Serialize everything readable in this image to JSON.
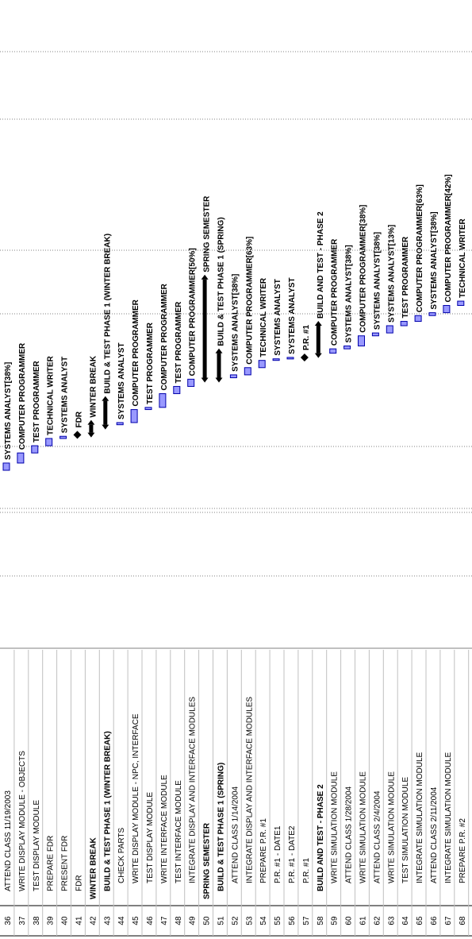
{
  "rows": [
    {
      "id": "36",
      "task": "ATTEND CLASS 11/19/2003",
      "level": 1,
      "summary": false,
      "bar_label": "SYSTEMS ANALYST[38%]",
      "bar": {
        "type": "task",
        "start": 0.0,
        "end": 0.5
      }
    },
    {
      "id": "37",
      "task": "WRITE DISPLAY MODULE - OBJECTS",
      "level": 1,
      "summary": false,
      "bar_label": "COMPUTER PROGRAMMER",
      "bar": {
        "type": "task",
        "start": 0.5,
        "end": 1.2
      }
    },
    {
      "id": "38",
      "task": "TEST DISPLAY MODULE",
      "level": 1,
      "summary": false,
      "bar_label": "TEST PROGRAMMER",
      "bar": {
        "type": "task",
        "start": 1.2,
        "end": 1.7
      }
    },
    {
      "id": "39",
      "task": "PREPARE FDR",
      "level": 1,
      "summary": false,
      "bar_label": "TECHNICAL WRITER",
      "bar": {
        "type": "task",
        "start": 1.7,
        "end": 2.2
      }
    },
    {
      "id": "40",
      "task": "PRESENT FDR",
      "level": 1,
      "summary": false,
      "bar_label": "SYSTEMS ANALYST",
      "bar": {
        "type": "task",
        "start": 2.2,
        "end": 2.35
      }
    },
    {
      "id": "41",
      "task": "FDR",
      "level": 1,
      "summary": false,
      "bar_label": "FDR",
      "bar": {
        "type": "milestone",
        "start": 2.45
      }
    },
    {
      "id": "42",
      "task": "WINTER BREAK",
      "level": 0,
      "summary": true,
      "bar_label": "WINTER BREAK",
      "bar": {
        "type": "summary",
        "start": 2.6,
        "end": 3.15
      }
    },
    {
      "id": "43",
      "task": "BUILD & TEST PHASE 1 (WINTER BREAK)",
      "level": 1,
      "summary": true,
      "bar_label": "BUILD & TEST PHASE 1 (WINTER BREAK)",
      "bar": {
        "type": "summary",
        "start": 3.15,
        "end": 4.8
      }
    },
    {
      "id": "44",
      "task": "CHECK PARTS",
      "level": 2,
      "summary": false,
      "bar_label": "SYSTEMS ANALYST",
      "bar": {
        "type": "task",
        "start": 3.15,
        "end": 3.3
      }
    },
    {
      "id": "45",
      "task": "WRITE DISPLAY MODULE - NPC, INTERFACE",
      "level": 2,
      "summary": false,
      "bar_label": "COMPUTER PROGRAMMER",
      "bar": {
        "type": "task",
        "start": 3.3,
        "end": 4.2
      }
    },
    {
      "id": "46",
      "task": "TEST DISPLAY MODULE",
      "level": 2,
      "summary": false,
      "bar_label": "TEST PROGRAMMER",
      "bar": {
        "type": "task",
        "start": 4.2,
        "end": 4.35
      }
    },
    {
      "id": "47",
      "task": "WRITE INTERFACE MODULE",
      "level": 2,
      "summary": false,
      "bar_label": "COMPUTER PROGRAMMER",
      "bar": {
        "type": "task",
        "start": 4.35,
        "end": 5.3
      }
    },
    {
      "id": "48",
      "task": "TEST INTERFACE MODULE",
      "level": 2,
      "summary": false,
      "bar_label": "TEST PROGRAMMER",
      "bar": {
        "type": "task",
        "start": 5.3,
        "end": 5.8
      }
    },
    {
      "id": "49",
      "task": "INTEGRATE DISPLAY AND INTERFACE MODULES",
      "level": 2,
      "summary": false,
      "bar_label": "COMPUTER PROGRAMMER[50%]",
      "bar": {
        "type": "task",
        "start": 5.8,
        "end": 6.3
      }
    },
    {
      "id": "50",
      "task": "SPRING SEMESTER",
      "level": 0,
      "summary": true,
      "bar_label": "SPRING SEMESTER",
      "bar": {
        "type": "summary",
        "start": 6.4,
        "end": 13.2
      }
    },
    {
      "id": "51",
      "task": "BUILD & TEST PHASE 1 (SPRING)",
      "level": 1,
      "summary": true,
      "bar_label": "BUILD & TEST PHASE 1 (SPRING)",
      "bar": {
        "type": "summary",
        "start": 6.4,
        "end": 8.1
      }
    },
    {
      "id": "52",
      "task": "ATTEND CLASS 1/14/2004",
      "level": 2,
      "summary": false,
      "bar_label": "SYSTEMS ANALYST[38%]",
      "bar": {
        "type": "task",
        "start": 6.4,
        "end": 6.6
      }
    },
    {
      "id": "53",
      "task": "INTEGRATE DISPLAY AND INTERFACE MODULES",
      "level": 2,
      "summary": false,
      "bar_label": "COMPUTER PROGRAMMER[63%]",
      "bar": {
        "type": "task",
        "start": 6.6,
        "end": 7.1
      }
    },
    {
      "id": "54",
      "task": "PREPARE P.R. #1",
      "level": 2,
      "summary": false,
      "bar_label": "TECHNICAL WRITER",
      "bar": {
        "type": "task",
        "start": 7.1,
        "end": 7.6
      }
    },
    {
      "id": "55",
      "task": "P.R. #1 - DATE1",
      "level": 2,
      "summary": false,
      "bar_label": "SYSTEMS ANALYST",
      "bar": {
        "type": "task",
        "start": 7.6,
        "end": 7.65
      }
    },
    {
      "id": "56",
      "task": "P.R. #1 - DATE2",
      "level": 2,
      "summary": false,
      "bar_label": "SYSTEMS ANALYST",
      "bar": {
        "type": "task",
        "start": 7.7,
        "end": 7.75
      }
    },
    {
      "id": "57",
      "task": "P.R. #1",
      "level": 2,
      "summary": false,
      "bar_label": "P.R. #1",
      "bar": {
        "type": "milestone",
        "start": 7.8
      }
    },
    {
      "id": "58",
      "task": "BUILD AND TEST - PHASE 2",
      "level": 1,
      "summary": true,
      "bar_label": "BUILD AND TEST - PHASE 2",
      "bar": {
        "type": "summary",
        "start": 8.1,
        "end": 10.0
      }
    },
    {
      "id": "59",
      "task": "WRITE SIMULATION MODULE",
      "level": 2,
      "summary": false,
      "bar_label": "COMPUTER PROGRAMMER",
      "bar": {
        "type": "task",
        "start": 8.1,
        "end": 8.4
      }
    },
    {
      "id": "60",
      "task": "ATTEND CLASS 1/28/2004",
      "level": 2,
      "summary": false,
      "bar_label": "SYSTEMS ANALYST[38%]",
      "bar": {
        "type": "task",
        "start": 8.4,
        "end": 8.6
      }
    },
    {
      "id": "61",
      "task": "WRITE SIMULATION MODULE",
      "level": 2,
      "summary": false,
      "bar_label": "COMPUTER PROGRAMMER[38%]",
      "bar": {
        "type": "task",
        "start": 8.6,
        "end": 9.3
      }
    },
    {
      "id": "62",
      "task": "ATTEND CLASS 2/4/2004",
      "level": 2,
      "summary": false,
      "bar_label": "SYSTEMS ANALYST[38%]",
      "bar": {
        "type": "task",
        "start": 9.3,
        "end": 9.5
      }
    },
    {
      "id": "63",
      "task": "WRITE SIMULATION MODULE",
      "level": 2,
      "summary": false,
      "bar_label": "SYSTEMS ANALYST[13%]",
      "bar": {
        "type": "task",
        "start": 9.5,
        "end": 10.0
      }
    },
    {
      "id": "64",
      "task": "TEST SIMULATION MODULE",
      "level": 2,
      "summary": false,
      "bar_label": "TEST PROGRAMMER",
      "bar": {
        "type": "task",
        "start": 10.0,
        "end": 10.3
      }
    },
    {
      "id": "65",
      "task": "INTEGRATE SIMULATION MODULE",
      "level": 2,
      "summary": false,
      "bar_label": "COMPUTER PROGRAMMER[63%]",
      "bar": {
        "type": "task",
        "start": 10.3,
        "end": 10.7
      }
    },
    {
      "id": "66",
      "task": "ATTEND CLASS 2/11/2004",
      "level": 2,
      "summary": false,
      "bar_label": "SYSTEMS ANALYST[38%]",
      "bar": {
        "type": "task",
        "start": 10.7,
        "end": 10.9
      }
    },
    {
      "id": "67",
      "task": "INTEGRATE SIMULATION MODULE",
      "level": 2,
      "summary": false,
      "bar_label": "COMPUTER PROGRAMMER[42%]",
      "bar": {
        "type": "task",
        "start": 10.9,
        "end": 11.4
      }
    },
    {
      "id": "68",
      "task": "PREPARE P.R. #2",
      "level": 2,
      "summary": false,
      "bar_label": "TECHNICAL WRITER",
      "bar": {
        "type": "task",
        "start": 11.4,
        "end": 11.7
      }
    }
  ],
  "colors": {
    "task_fill": "#9999ff",
    "task_stroke": "#0000aa",
    "summary": "#000000",
    "grid": "#808080",
    "text": "#000000"
  }
}
